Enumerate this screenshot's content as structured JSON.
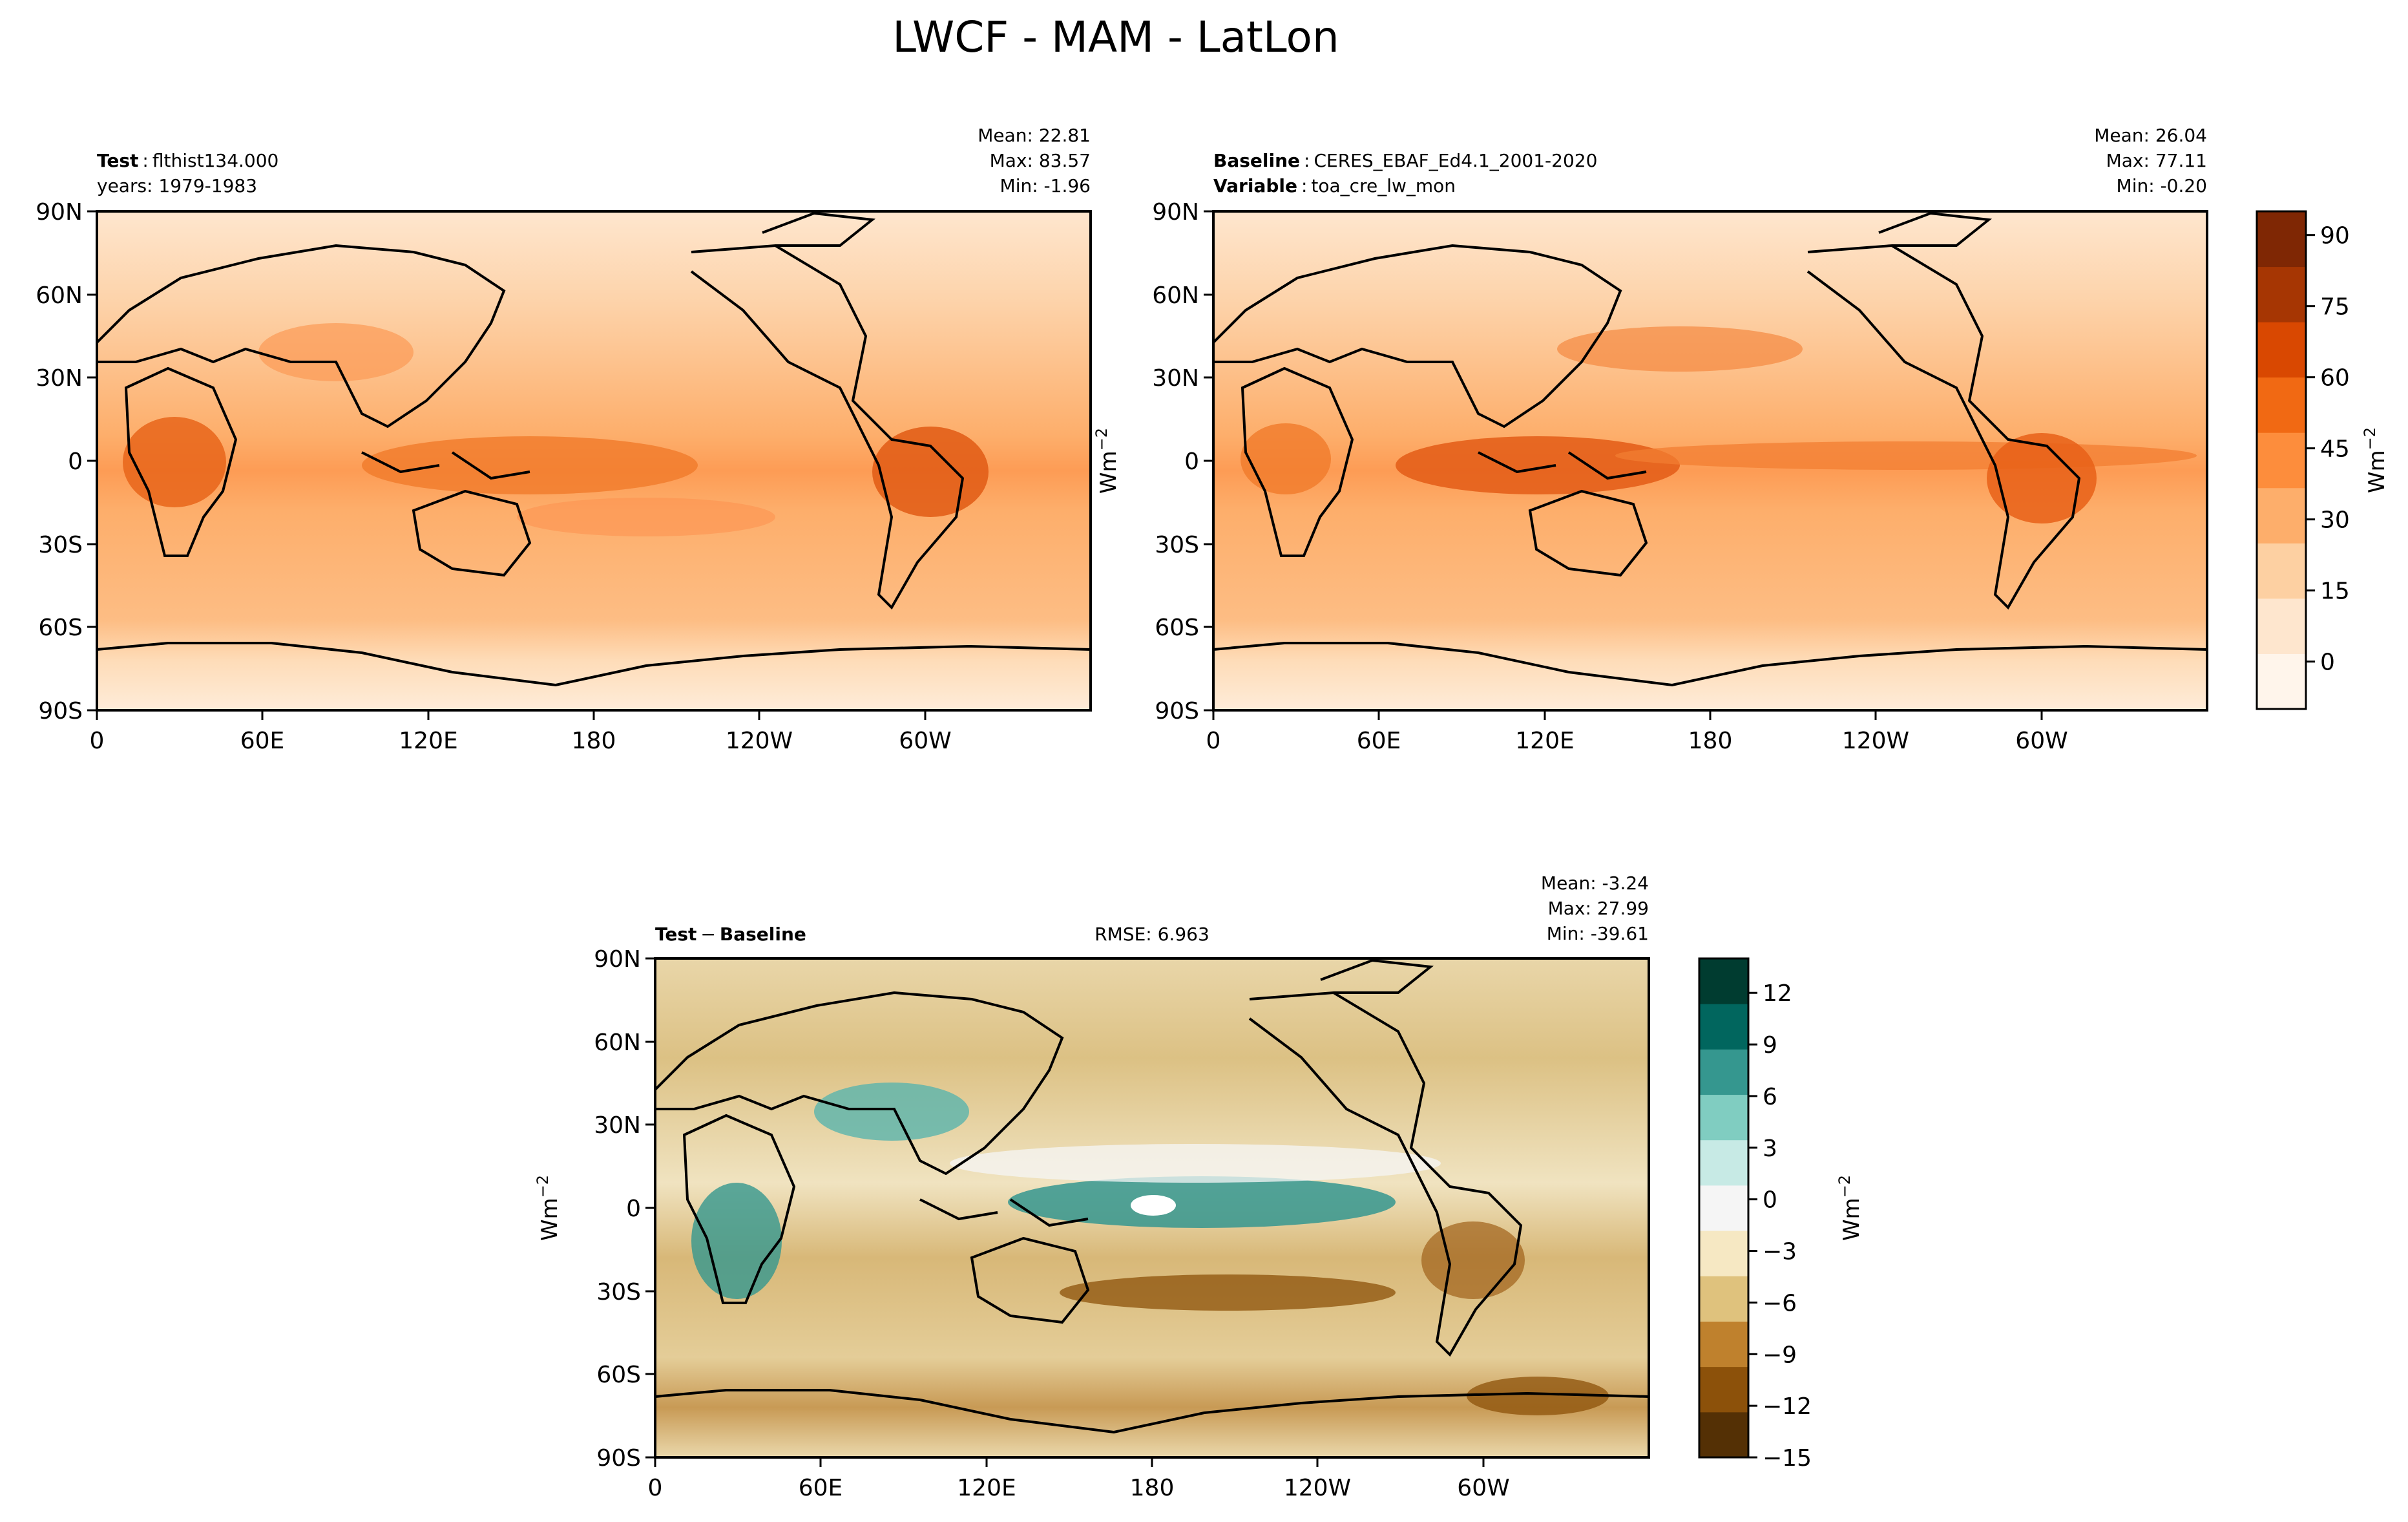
{
  "figure": {
    "title": "LWCF - MAM - LatLon"
  },
  "chart_data": [
    {
      "type": "heatmap",
      "panel": "test",
      "title_bold": "Test",
      "title_sep": ":",
      "title_rest": "flthist134.000",
      "subtitle": "years: 1979-1983",
      "stats": {
        "mean": "Mean: 22.81",
        "max": "Max: 83.57",
        "min": "Min: -1.96"
      },
      "units": "Wm",
      "units_exp": "−2",
      "x_ticks": [
        "0",
        "60E",
        "120E",
        "180",
        "120W",
        "60W"
      ],
      "x_values": [
        0,
        60,
        120,
        180,
        240,
        300
      ],
      "xlim": [
        0,
        360
      ],
      "y_ticks": [
        "90N",
        "60N",
        "30N",
        "0",
        "30S",
        "60S",
        "90S"
      ],
      "y_values": [
        90,
        60,
        30,
        0,
        -30,
        -60,
        -90
      ],
      "ylim": [
        -90,
        90
      ]
    },
    {
      "type": "heatmap",
      "panel": "baseline",
      "line1_bold": "Baseline",
      "line1_rest": "CERES_EBAF_Ed4.1_2001-2020",
      "line2_bold": "Variable",
      "line2_rest": "toa_cre_lw_mon",
      "title_sep": ":",
      "stats": {
        "mean": "Mean: 26.04",
        "max": "Max: 77.11",
        "min": "Min: -0.20"
      },
      "colorbar": {
        "ticks": [
          "90",
          "75",
          "60",
          "45",
          "30",
          "15",
          "0"
        ],
        "values": [
          90,
          75,
          60,
          45,
          30,
          15,
          0
        ],
        "range": [
          -10,
          95
        ],
        "colors": [
          "#fff5eb",
          "#fee6ce",
          "#fdd0a2",
          "#fdae6b",
          "#fd8d3c",
          "#f16913",
          "#d94801",
          "#a63603",
          "#7f2704"
        ],
        "label": "Wm",
        "label_exp": "−2"
      },
      "x_ticks": [
        "0",
        "60E",
        "120E",
        "180",
        "120W",
        "60W"
      ],
      "y_ticks": [
        "90N",
        "60N",
        "30N",
        "0",
        "30S",
        "60S",
        "90S"
      ]
    },
    {
      "type": "heatmap",
      "panel": "difference",
      "title_bold": "Test",
      "title_minus": "−",
      "title_bold2": "Baseline",
      "rmse": "RMSE: 6.963",
      "stats": {
        "mean": "Mean: -3.24",
        "max": "Max: 27.99",
        "min": "Min: -39.61"
      },
      "units": "Wm",
      "units_exp": "−2",
      "colorbar": {
        "ticks": [
          "12",
          "9",
          "6",
          "3",
          "0",
          "−3",
          "−6",
          "−9",
          "−12",
          "−15"
        ],
        "values": [
          12,
          9,
          6,
          3,
          0,
          -3,
          -6,
          -9,
          -12,
          -15
        ],
        "range": [
          -15,
          14
        ],
        "colors": [
          "#543005",
          "#8c510a",
          "#bf812d",
          "#dfc27d",
          "#f6e8c3",
          "#f5f5f5",
          "#c7eae5",
          "#80cdc1",
          "#35978f",
          "#01665e",
          "#003c30"
        ],
        "label": "Wm",
        "label_exp": "−2"
      },
      "x_ticks": [
        "0",
        "60E",
        "120E",
        "180",
        "120W",
        "60W"
      ],
      "y_ticks": [
        "90N",
        "60N",
        "30N",
        "0",
        "30S",
        "60S",
        "90S"
      ]
    }
  ]
}
